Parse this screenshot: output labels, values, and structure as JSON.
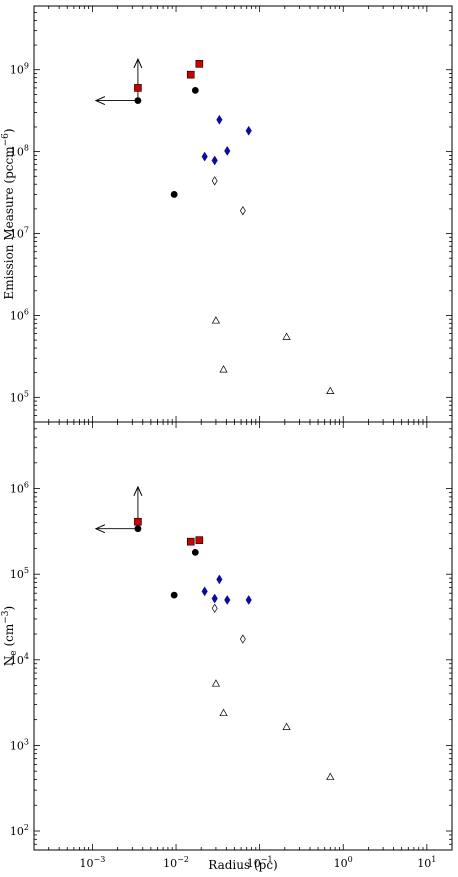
{
  "chart_data": [
    {
      "type": "scatter",
      "title": "",
      "xlabel": "Radius (pc)",
      "ylabel_main": "Emission Measure (pccm",
      "ylabel_sup": "−6",
      "ylabel_end": ")",
      "xscale": "log",
      "yscale": "log",
      "xlim": [
        0.0002,
        20
      ],
      "ylim": [
        50000,
        6000000000
      ],
      "x_tick_labels": [],
      "y_ticks": [
        {
          "base": "10",
          "exp": "5",
          "value": 100000
        },
        {
          "base": "10",
          "exp": "6",
          "value": 1000000
        },
        {
          "base": "10",
          "exp": "7",
          "value": 10000000
        },
        {
          "base": "10",
          "exp": "8",
          "value": 100000000
        },
        {
          "base": "10",
          "exp": "9",
          "value": 1000000000
        }
      ],
      "series": [
        {
          "marker": "square",
          "color": "#cc0000",
          "points": [
            [
              0.0035,
              600000000
            ],
            [
              0.015,
              870000000
            ],
            [
              0.019,
              1180000000
            ]
          ]
        },
        {
          "marker": "circle",
          "color": "#000000",
          "points": [
            [
              0.0035,
              420000000
            ],
            [
              0.0095,
              30000000
            ],
            [
              0.017,
              560000000
            ]
          ]
        },
        {
          "marker": "diamond",
          "color": "#0a0a9c",
          "points": [
            [
              0.022,
              87000000
            ],
            [
              0.029,
              78000000
            ],
            [
              0.033,
              245000000
            ],
            [
              0.041,
              102000000
            ],
            [
              0.074,
              180000000
            ]
          ]
        },
        {
          "marker": "diamond-open",
          "color": "#000000",
          "points": [
            [
              0.029,
              44000000
            ],
            [
              0.063,
              19000000
            ]
          ]
        },
        {
          "marker": "triangle-open",
          "color": "#000000",
          "points": [
            [
              0.03,
              870000
            ],
            [
              0.037,
              220000
            ],
            [
              0.21,
              550000
            ],
            [
              0.7,
              120000
            ]
          ]
        }
      ],
      "arrows": [
        {
          "from": [
            0.0035,
            420000000
          ],
          "to": [
            0.0011,
            420000000
          ]
        },
        {
          "from": [
            0.0035,
            420000000
          ],
          "to": [
            0.0035,
            1350000000
          ]
        }
      ]
    },
    {
      "type": "scatter",
      "title": "",
      "xlabel": "Radius (pc)",
      "ylabel_main": "N",
      "ylabel_sub": "e",
      "ylabel_mid": " (cm",
      "ylabel_sup": "−3",
      "ylabel_end": ")",
      "xscale": "log",
      "yscale": "log",
      "xlim": [
        0.0002,
        20
      ],
      "ylim": [
        60,
        6000000
      ],
      "x_tick_labels": [
        {
          "base": "10",
          "exp": "−3",
          "value": 0.001
        },
        {
          "base": "10",
          "exp": "−2",
          "value": 0.01
        },
        {
          "base": "10",
          "exp": "−1",
          "value": 0.1
        },
        {
          "base": "10",
          "exp": "0",
          "value": 1
        },
        {
          "base": "10",
          "exp": "1",
          "value": 10
        }
      ],
      "y_ticks": [
        {
          "base": "10",
          "exp": "2",
          "value": 100
        },
        {
          "base": "10",
          "exp": "3",
          "value": 1000
        },
        {
          "base": "10",
          "exp": "4",
          "value": 10000
        },
        {
          "base": "10",
          "exp": "5",
          "value": 100000
        },
        {
          "base": "10",
          "exp": "6",
          "value": 1000000
        }
      ],
      "series": [
        {
          "marker": "square",
          "color": "#cc0000",
          "points": [
            [
              0.0035,
              410000
            ],
            [
              0.015,
              240000
            ],
            [
              0.019,
              250000
            ]
          ]
        },
        {
          "marker": "circle",
          "color": "#000000",
          "points": [
            [
              0.0035,
              340000
            ],
            [
              0.0095,
              57000
            ],
            [
              0.017,
              180000
            ]
          ]
        },
        {
          "marker": "diamond",
          "color": "#0a0a9c",
          "points": [
            [
              0.022,
              63000
            ],
            [
              0.029,
              52000
            ],
            [
              0.033,
              87000
            ],
            [
              0.041,
              50000
            ],
            [
              0.074,
              50000
            ]
          ]
        },
        {
          "marker": "diamond-open",
          "color": "#000000",
          "points": [
            [
              0.029,
              40000
            ],
            [
              0.063,
              17500
            ]
          ]
        },
        {
          "marker": "triangle-open",
          "color": "#000000",
          "points": [
            [
              0.03,
              5300
            ],
            [
              0.037,
              2400
            ],
            [
              0.21,
              1650
            ],
            [
              0.7,
              430
            ]
          ]
        }
      ],
      "arrows": [
        {
          "from": [
            0.0035,
            340000
          ],
          "to": [
            0.0011,
            340000
          ]
        },
        {
          "from": [
            0.0035,
            340000
          ],
          "to": [
            0.0035,
            1050000
          ]
        }
      ]
    }
  ]
}
